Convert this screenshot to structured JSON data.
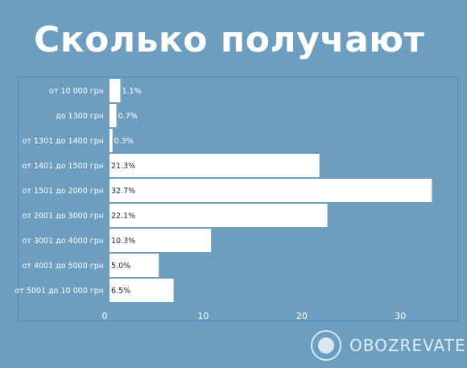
{
  "chart_data": {
    "type": "bar",
    "orientation": "horizontal",
    "title": "Сколько получают",
    "categories": [
      "от 10 000 грн",
      "до 1300 грн",
      "от 1301 до 1400 грн",
      "от 1401 до 1500 грн",
      "от 1501 до 2000 грн",
      "от 2001 до 3000 грн",
      "от 3001 до 4000 грн",
      "от 4001 до 5000 грн",
      "от 5001 до 10 000 грн"
    ],
    "values": [
      1.1,
      0.7,
      0.3,
      21.3,
      32.7,
      22.1,
      10.3,
      5.0,
      6.5
    ],
    "value_labels": [
      "1.1%",
      "0.7%",
      "0.3%",
      "21.3%",
      "32.7%",
      "22.1%",
      "10.3%",
      "5.0%",
      "6.5%"
    ],
    "xticks": [
      0,
      10,
      20,
      30
    ],
    "xtick_labels": [
      "0",
      "10",
      "20",
      "30"
    ],
    "xlim": [
      0,
      33
    ],
    "xlabel": "",
    "ylabel": "",
    "grid": false,
    "bar_color": "#ffffff",
    "background_color": "#6d9ebf"
  },
  "watermark": {
    "text": "OBOZREVATEL",
    "icon": "globe-icon"
  }
}
